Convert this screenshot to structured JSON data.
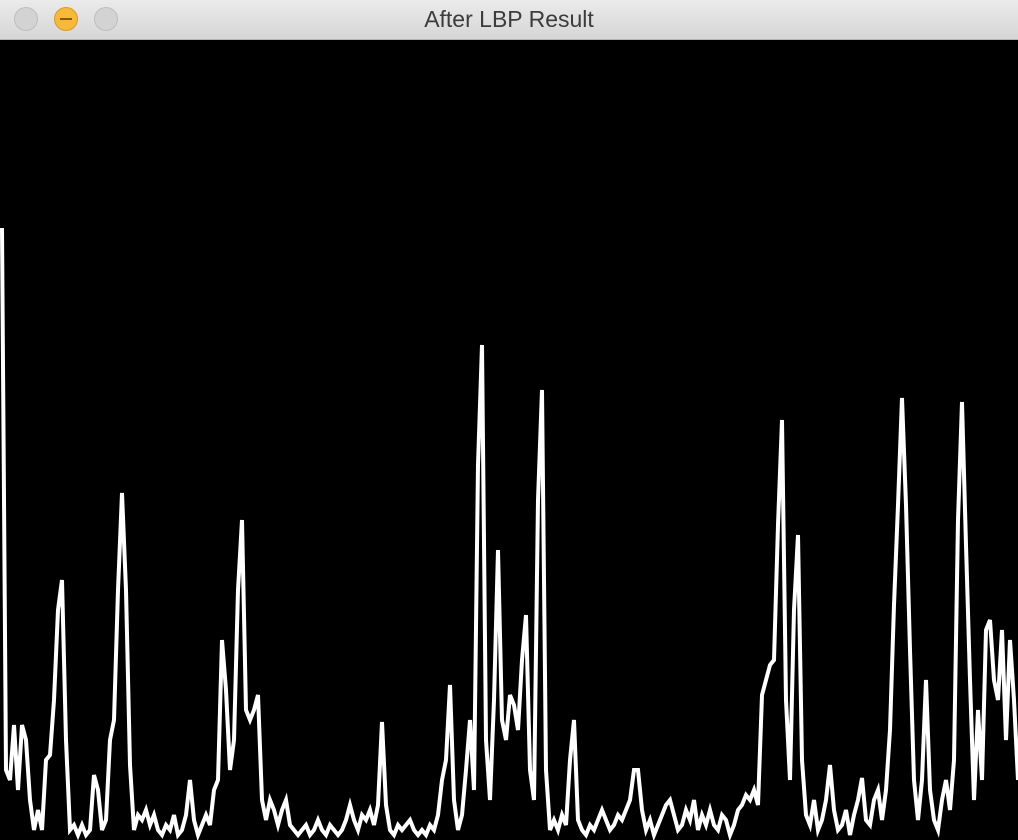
{
  "window": {
    "title": "After LBP Result"
  },
  "chart_data": {
    "type": "line",
    "color": "#ffffff",
    "background": "#000000",
    "ylim": [
      0,
      800
    ],
    "values": [
      612,
      70,
      60,
      115,
      50,
      115,
      100,
      40,
      10,
      30,
      10,
      80,
      85,
      140,
      230,
      260,
      100,
      10,
      15,
      5,
      15,
      5,
      10,
      65,
      50,
      10,
      20,
      100,
      120,
      250,
      347,
      250,
      75,
      10,
      25,
      20,
      30,
      15,
      25,
      10,
      5,
      15,
      10,
      25,
      5,
      10,
      25,
      60,
      20,
      5,
      15,
      25,
      15,
      50,
      60,
      200,
      150,
      70,
      100,
      250,
      320,
      130,
      120,
      130,
      145,
      40,
      20,
      40,
      30,
      15,
      30,
      40,
      15,
      10,
      5,
      10,
      15,
      5,
      10,
      20,
      10,
      5,
      15,
      10,
      5,
      10,
      20,
      35,
      20,
      10,
      25,
      20,
      30,
      15,
      35,
      118,
      35,
      10,
      5,
      15,
      10,
      15,
      20,
      10,
      5,
      10,
      5,
      15,
      10,
      25,
      60,
      80,
      155,
      40,
      10,
      25,
      70,
      120,
      50,
      375,
      495,
      100,
      40,
      140,
      290,
      120,
      100,
      145,
      135,
      110,
      180,
      225,
      70,
      40,
      340,
      450,
      70,
      10,
      20,
      10,
      25,
      15,
      80,
      120,
      20,
      10,
      5,
      15,
      10,
      20,
      30,
      20,
      10,
      15,
      25,
      20,
      30,
      40,
      70,
      70,
      30,
      10,
      20,
      5,
      15,
      25,
      35,
      40,
      25,
      10,
      15,
      30,
      20,
      40,
      10,
      25,
      15,
      30,
      15,
      10,
      25,
      20,
      5,
      15,
      30,
      35,
      45,
      40,
      50,
      35,
      145,
      160,
      175,
      180,
      315,
      420,
      140,
      60,
      230,
      305,
      80,
      25,
      15,
      40,
      10,
      20,
      40,
      75,
      30,
      10,
      15,
      30,
      5,
      25,
      40,
      62,
      20,
      15,
      40,
      50,
      20,
      50,
      110,
      235,
      335,
      442,
      335,
      190,
      60,
      20,
      60,
      160,
      50,
      20,
      10,
      40,
      60,
      30,
      80,
      320,
      438,
      295,
      160,
      40,
      130,
      60,
      210,
      220,
      160,
      140,
      210,
      100,
      200,
      140,
      60
    ]
  }
}
